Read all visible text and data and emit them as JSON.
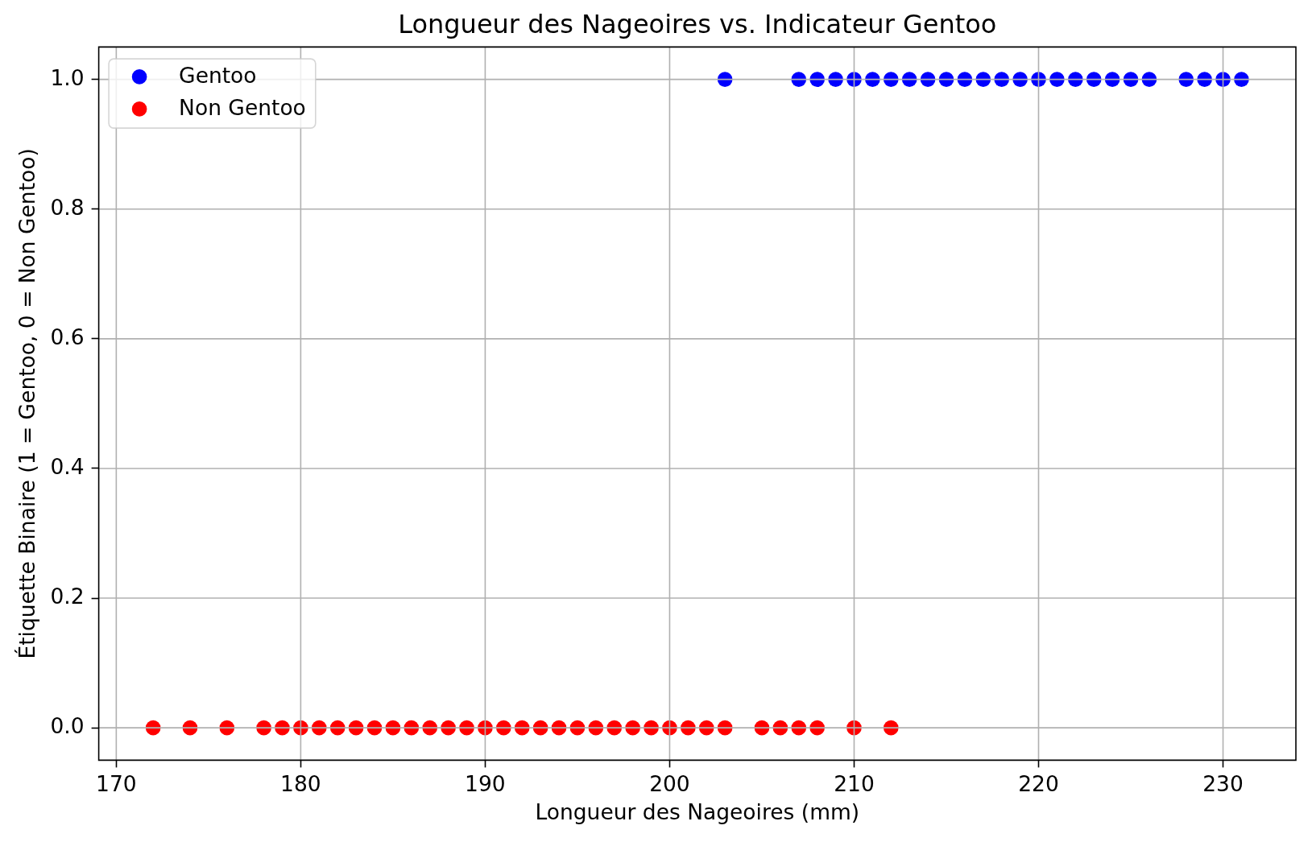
{
  "chart_data": {
    "type": "scatter",
    "title": "Longueur des Nageoires vs. Indicateur Gentoo",
    "xlabel": "Longueur des Nageoires (mm)",
    "ylabel": "Étiquette Binaire (1 = Gentoo, 0 = Non Gentoo)",
    "series": [
      {
        "name": "Gentoo",
        "color": "#0000ff",
        "x": [
          203,
          207,
          208,
          209,
          210,
          211,
          212,
          213,
          214,
          215,
          216,
          217,
          218,
          219,
          220,
          221,
          222,
          223,
          224,
          225,
          226,
          228,
          229,
          230,
          231
        ],
        "values": [
          1,
          1,
          1,
          1,
          1,
          1,
          1,
          1,
          1,
          1,
          1,
          1,
          1,
          1,
          1,
          1,
          1,
          1,
          1,
          1,
          1,
          1,
          1,
          1,
          1
        ]
      },
      {
        "name": "Non Gentoo",
        "color": "#ff0000",
        "x": [
          172,
          174,
          176,
          178,
          179,
          180,
          181,
          182,
          183,
          184,
          185,
          186,
          187,
          188,
          189,
          190,
          191,
          192,
          193,
          194,
          195,
          196,
          197,
          198,
          199,
          200,
          201,
          202,
          203,
          205,
          206,
          207,
          208,
          210,
          212
        ],
        "values": [
          0,
          0,
          0,
          0,
          0,
          0,
          0,
          0,
          0,
          0,
          0,
          0,
          0,
          0,
          0,
          0,
          0,
          0,
          0,
          0,
          0,
          0,
          0,
          0,
          0,
          0,
          0,
          0,
          0,
          0,
          0,
          0,
          0,
          0,
          0
        ]
      }
    ],
    "xlim": [
      169.05,
      233.95
    ],
    "ylim": [
      -0.05,
      1.05
    ],
    "xticks": [
      170,
      180,
      190,
      200,
      210,
      220,
      230
    ],
    "yticks": [
      {
        "value": 0,
        "label": "0.0"
      },
      0.2,
      0.4,
      0.6,
      0.8,
      {
        "value": 1,
        "label": "1.0"
      }
    ],
    "grid": true,
    "legend": "top left",
    "marker": "circle"
  }
}
